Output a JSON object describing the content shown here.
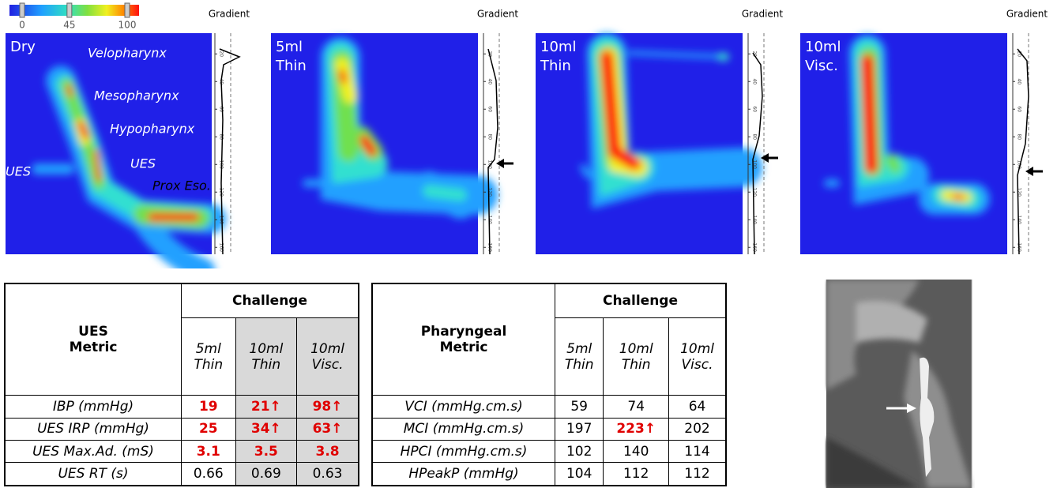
{
  "colorbar": {
    "ticks": [
      0,
      45,
      100
    ]
  },
  "gradient_ticks": [
    20,
    40,
    60,
    80,
    100,
    120,
    140,
    160
  ],
  "panels": [
    {
      "label": [
        "Dry"
      ],
      "gradient_title": "Gradient",
      "annotations": [
        "Velopharynx",
        "Mesopharynx",
        "Hypopharynx",
        "UES",
        "UES",
        "Prox Eso."
      ]
    },
    {
      "label": [
        "5ml",
        "Thin"
      ],
      "gradient_title": "Gradient"
    },
    {
      "label": [
        "10ml",
        "Thin"
      ],
      "gradient_title": "Gradient"
    },
    {
      "label": [
        "10ml",
        "Visc."
      ],
      "gradient_title": "Gradient"
    }
  ],
  "ues_table": {
    "title": [
      "UES",
      "Metric"
    ],
    "challenge": "Challenge",
    "columns": [
      [
        "5ml",
        "Thin"
      ],
      [
        "10ml",
        "Thin"
      ],
      [
        "10ml",
        "Visc."
      ]
    ],
    "rows": [
      {
        "metric": "IBP (mmHg)",
        "values": [
          "19",
          "21↑",
          "98↑"
        ]
      },
      {
        "metric": "UES IRP (mmHg)",
        "values": [
          "25",
          "34↑",
          "63↑"
        ]
      },
      {
        "metric": "UES Max.Ad. (mS)",
        "values": [
          "3.1",
          "3.5",
          "3.8"
        ]
      },
      {
        "metric": "UES RT (s)",
        "values": [
          "0.66",
          "0.69",
          "0.63"
        ]
      }
    ]
  },
  "pharyngeal_table": {
    "title": [
      "Pharyngeal",
      "Metric"
    ],
    "challenge": "Challenge",
    "columns": [
      [
        "5ml",
        "Thin"
      ],
      [
        "10ml",
        "Thin"
      ],
      [
        "10ml",
        "Visc."
      ]
    ],
    "rows": [
      {
        "metric": "VCI (mmHg.cm.s)",
        "values": [
          "59",
          "74",
          "64"
        ]
      },
      {
        "metric": "MCI (mmHg.cm.s)",
        "values": [
          "197",
          "223↑",
          "202"
        ]
      },
      {
        "metric": "HPCI (mmHg.cm.s)",
        "values": [
          "102",
          "140",
          "114"
        ]
      },
      {
        "metric": "HPeakP (mmHg)",
        "values": [
          "104",
          "112",
          "112"
        ]
      }
    ]
  }
}
